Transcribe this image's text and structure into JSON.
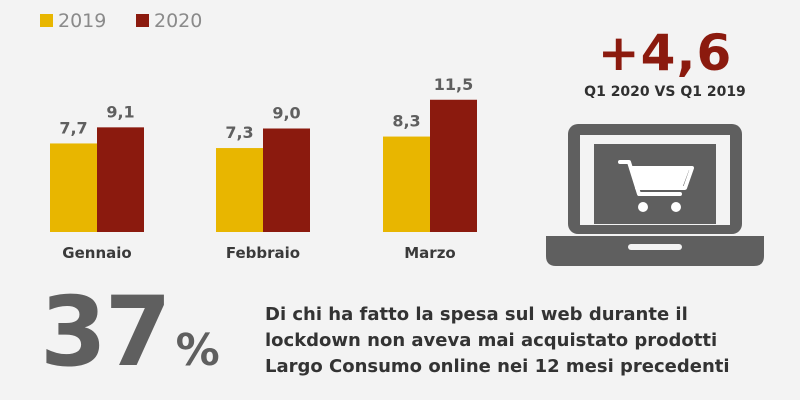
{
  "chart_data": {
    "type": "bar",
    "categories": [
      "Gennaio",
      "Febbraio",
      "Marzo"
    ],
    "series": [
      {
        "name": "2019",
        "color": "#e8b600",
        "values": [
          7.7,
          7.3,
          8.3
        ],
        "labels": [
          "7,7",
          "7,3",
          "8,3"
        ]
      },
      {
        "name": "2020",
        "color": "#8b1a0e",
        "values": [
          9.1,
          9.0,
          11.5
        ],
        "labels": [
          "9,1",
          "9,0",
          "11,5"
        ]
      }
    ],
    "ylim": [
      0,
      14
    ],
    "grid": false,
    "legend_position": "top-left"
  },
  "kpi": {
    "value": "+4,6",
    "caption": "Q1 2020 VS Q1 2019",
    "color": "#8b1a0e"
  },
  "icon": "laptop-shopping-cart-icon",
  "footer": {
    "percent_value": "37",
    "percent_symbol": "%",
    "description_lines": [
      "Di chi ha fatto la spesa sul web durante il",
      "lockdown non aveva mai acquistato prodotti",
      "Largo Consumo online nei 12 mesi precedenti"
    ]
  }
}
